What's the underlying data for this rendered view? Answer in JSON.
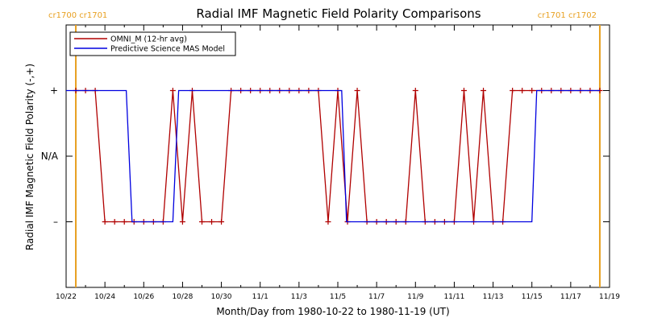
{
  "colors": {
    "omni": "#b00000",
    "mas": "#0000e0",
    "cr_marker": "#e8a020"
  },
  "chart_data": {
    "type": "line",
    "title": "Radial IMF Magnetic Field Polarity Comparisons",
    "xlabel": "Month/Day from 1980-10-22 to 1980-11-19 (UT)",
    "ylabel": "Radial IMF Magnetic Field Polarity (-,+)",
    "x_start": "1980-10-22",
    "x_end": "1980-11-19",
    "xlim": [
      0,
      28
    ],
    "ylim": [
      -2,
      2
    ],
    "xticks": [
      {
        "v": 0,
        "label": "10/22"
      },
      {
        "v": 2,
        "label": "10/24"
      },
      {
        "v": 4,
        "label": "10/26"
      },
      {
        "v": 6,
        "label": "10/28"
      },
      {
        "v": 8,
        "label": "10/30"
      },
      {
        "v": 10,
        "label": "11/1"
      },
      {
        "v": 12,
        "label": "11/3"
      },
      {
        "v": 14,
        "label": "11/5"
      },
      {
        "v": 16,
        "label": "11/7"
      },
      {
        "v": 18,
        "label": "11/9"
      },
      {
        "v": 20,
        "label": "11/11"
      },
      {
        "v": 22,
        "label": "11/13"
      },
      {
        "v": 24,
        "label": "11/15"
      },
      {
        "v": 26,
        "label": "11/17"
      },
      {
        "v": 28,
        "label": "11/19"
      }
    ],
    "yticks": [
      {
        "v": 1,
        "label": "+"
      },
      {
        "v": 0,
        "label": "N/A"
      },
      {
        "v": -1,
        "label": "–"
      }
    ],
    "vlines": [
      {
        "x": 0.5,
        "label": "cr1700 cr1701"
      },
      {
        "x": 27.5,
        "label": "cr1701 cr1702"
      }
    ],
    "legend_position": "top-left",
    "series": [
      {
        "name": "OMNI_M (12-hr avg)",
        "color_key": "omni",
        "markers": true,
        "points": [
          [
            0.5,
            1
          ],
          [
            1.0,
            1
          ],
          [
            1.5,
            1
          ],
          [
            2.0,
            -1
          ],
          [
            2.5,
            -1
          ],
          [
            3.0,
            -1
          ],
          [
            3.5,
            -1
          ],
          [
            4.0,
            -1
          ],
          [
            4.5,
            -1
          ],
          [
            5.0,
            -1
          ],
          [
            5.5,
            1
          ],
          [
            6.0,
            -1
          ],
          [
            6.5,
            1
          ],
          [
            7.0,
            -1
          ],
          [
            7.5,
            -1
          ],
          [
            8.0,
            -1
          ],
          [
            8.5,
            1
          ],
          [
            9.0,
            1
          ],
          [
            9.5,
            1
          ],
          [
            10.0,
            1
          ],
          [
            10.5,
            1
          ],
          [
            11.0,
            1
          ],
          [
            11.5,
            1
          ],
          [
            12.0,
            1
          ],
          [
            12.5,
            1
          ],
          [
            13.0,
            1
          ],
          [
            13.5,
            -1
          ],
          [
            14.0,
            1
          ],
          [
            14.5,
            -1
          ],
          [
            15.0,
            1
          ],
          [
            15.5,
            -1
          ],
          [
            16.0,
            -1
          ],
          [
            16.5,
            -1
          ],
          [
            17.0,
            -1
          ],
          [
            17.5,
            -1
          ],
          [
            18.0,
            1
          ],
          [
            18.5,
            -1
          ],
          [
            19.0,
            -1
          ],
          [
            19.5,
            -1
          ],
          [
            20.0,
            -1
          ],
          [
            20.5,
            1
          ],
          [
            21.0,
            -1
          ],
          [
            21.5,
            1
          ],
          [
            22.0,
            -1
          ],
          [
            22.5,
            -1
          ],
          [
            23.0,
            1
          ],
          [
            23.5,
            1
          ],
          [
            24.0,
            1
          ],
          [
            24.5,
            1
          ],
          [
            25.0,
            1
          ],
          [
            25.5,
            1
          ],
          [
            26.0,
            1
          ],
          [
            26.5,
            1
          ],
          [
            27.0,
            1
          ],
          [
            27.5,
            1
          ]
        ]
      },
      {
        "name": "Predictive Science MAS Model",
        "color_key": "mas",
        "markers": false,
        "points": [
          [
            0.0,
            1
          ],
          [
            3.1,
            1
          ],
          [
            3.4,
            -1
          ],
          [
            5.5,
            -1
          ],
          [
            5.8,
            1
          ],
          [
            14.2,
            1
          ],
          [
            14.45,
            -1
          ],
          [
            24.0,
            -1
          ],
          [
            24.25,
            1
          ],
          [
            27.5,
            1
          ]
        ]
      }
    ]
  }
}
